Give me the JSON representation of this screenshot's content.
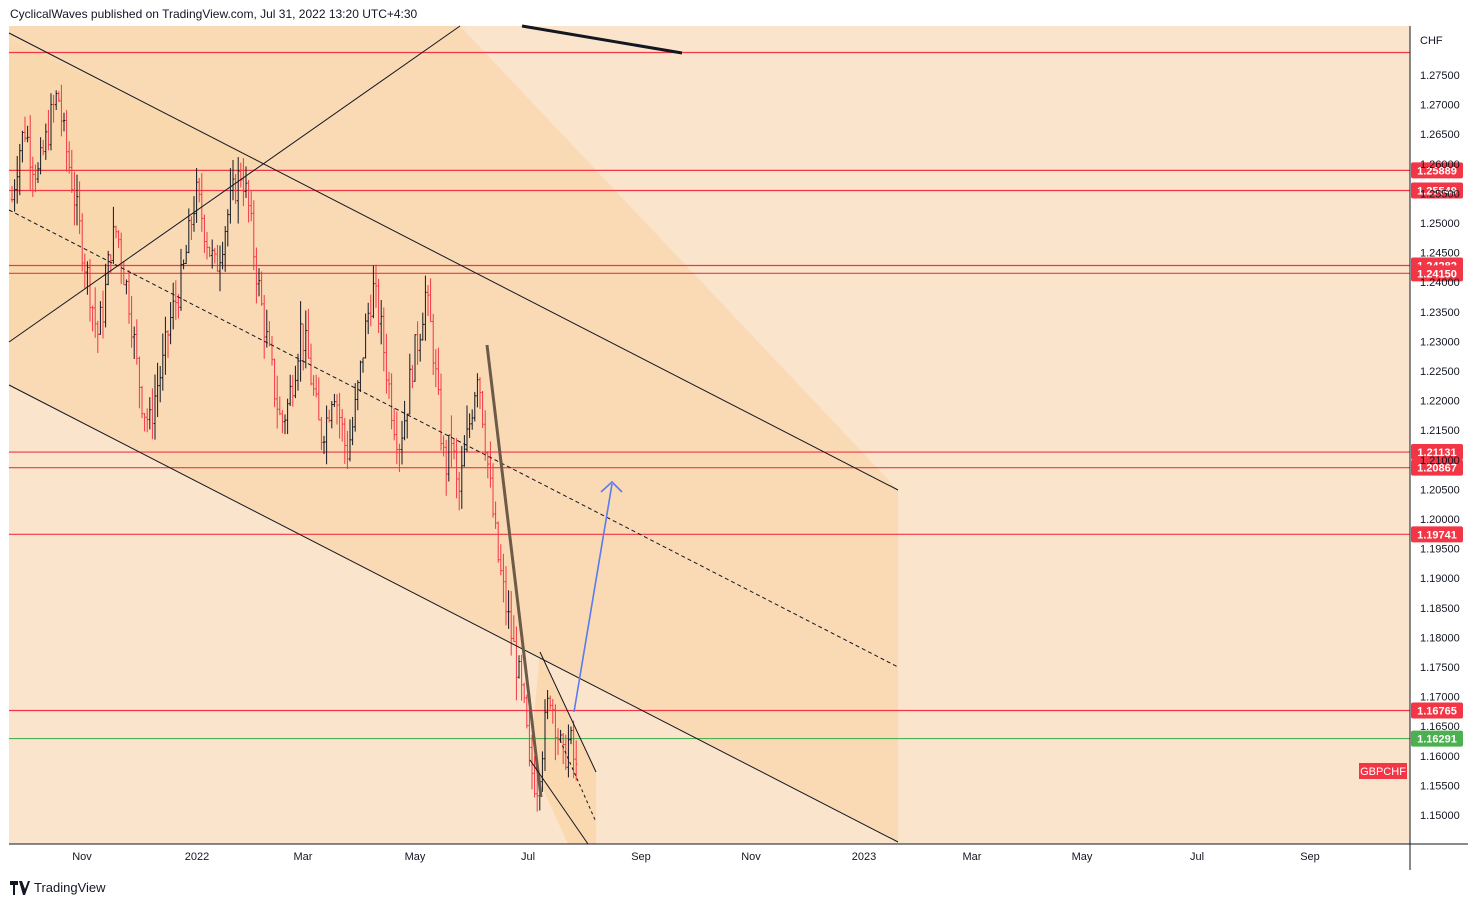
{
  "header": {
    "published_text": "CyclicalWaves published on TradingView.com, Jul 31, 2022 13:20 UTC+4:30"
  },
  "footer": {
    "brand": "TradingView"
  },
  "colors": {
    "background": "#fbe4cc",
    "channel_fill": "#fad7ad",
    "level_line": "#f23645",
    "current_line": "#4caf50",
    "label_red": "#f23645",
    "label_green": "#4caf50",
    "arrow": "#5b7bef",
    "up_bar": "#131722",
    "down_bar": "#f23645"
  },
  "chart_data": {
    "type": "ohlc",
    "symbol": "GBPCHF",
    "currency": "CHF",
    "y_ticks": [
      "1.27500",
      "1.27000",
      "1.26500",
      "1.26000",
      "1.25500",
      "1.25000",
      "1.24500",
      "1.24000",
      "1.23500",
      "1.23000",
      "1.22500",
      "1.22000",
      "1.21500",
      "1.21000",
      "1.20500",
      "1.20000",
      "1.19500",
      "1.19000",
      "1.18500",
      "1.18000",
      "1.17500",
      "1.17000",
      "1.16500",
      "1.16000",
      "1.15500",
      "1.15000"
    ],
    "y_range": [
      1.1465,
      1.2802
    ],
    "x_ticks": [
      "Nov",
      "2022",
      "Mar",
      "May",
      "Jul",
      "Sep",
      "Nov",
      "2023",
      "Mar",
      "May",
      "Jul",
      "Sep"
    ],
    "levels": [
      {
        "value": 1.2788,
        "label": ""
      },
      {
        "value": 1.25889,
        "label": "1.25889"
      },
      {
        "value": 1.25549,
        "label": "1.25549"
      },
      {
        "value": 1.24282,
        "label": "1.24282"
      },
      {
        "value": 1.2415,
        "label": "1.24150"
      },
      {
        "value": 1.21131,
        "label": "1.21131"
      },
      {
        "value": 1.20867,
        "label": "1.20867"
      },
      {
        "value": 1.19741,
        "label": "1.19741"
      },
      {
        "value": 1.16765,
        "label": "1.16765"
      }
    ],
    "current_price": {
      "value": 1.16291,
      "label": "1.16291"
    },
    "close_path": [
      1.254,
      1.262,
      1.266,
      1.261,
      1.258,
      1.263,
      1.268,
      1.272,
      1.264,
      1.258,
      1.251,
      1.244,
      1.238,
      1.231,
      1.236,
      1.246,
      1.249,
      1.242,
      1.236,
      1.226,
      1.219,
      1.216,
      1.222,
      1.226,
      1.233,
      1.237,
      1.241,
      1.248,
      1.255,
      1.251,
      1.246,
      1.242,
      1.247,
      1.252,
      1.256,
      1.259,
      1.253,
      1.244,
      1.236,
      1.229,
      1.222,
      1.216,
      1.219,
      1.225,
      1.232,
      1.228,
      1.221,
      1.214,
      1.217,
      1.223,
      1.217,
      1.211,
      1.216,
      1.224,
      1.233,
      1.239,
      1.234,
      1.226,
      1.218,
      1.213,
      1.218,
      1.226,
      1.231,
      1.238,
      1.231,
      1.219,
      1.208,
      1.214,
      1.203,
      1.211,
      1.218,
      1.226,
      1.215,
      1.204,
      1.194,
      1.187,
      1.181,
      1.175,
      1.168,
      1.158,
      1.155,
      1.163,
      1.171,
      1.165,
      1.159,
      1.163,
      1.157
    ]
  }
}
